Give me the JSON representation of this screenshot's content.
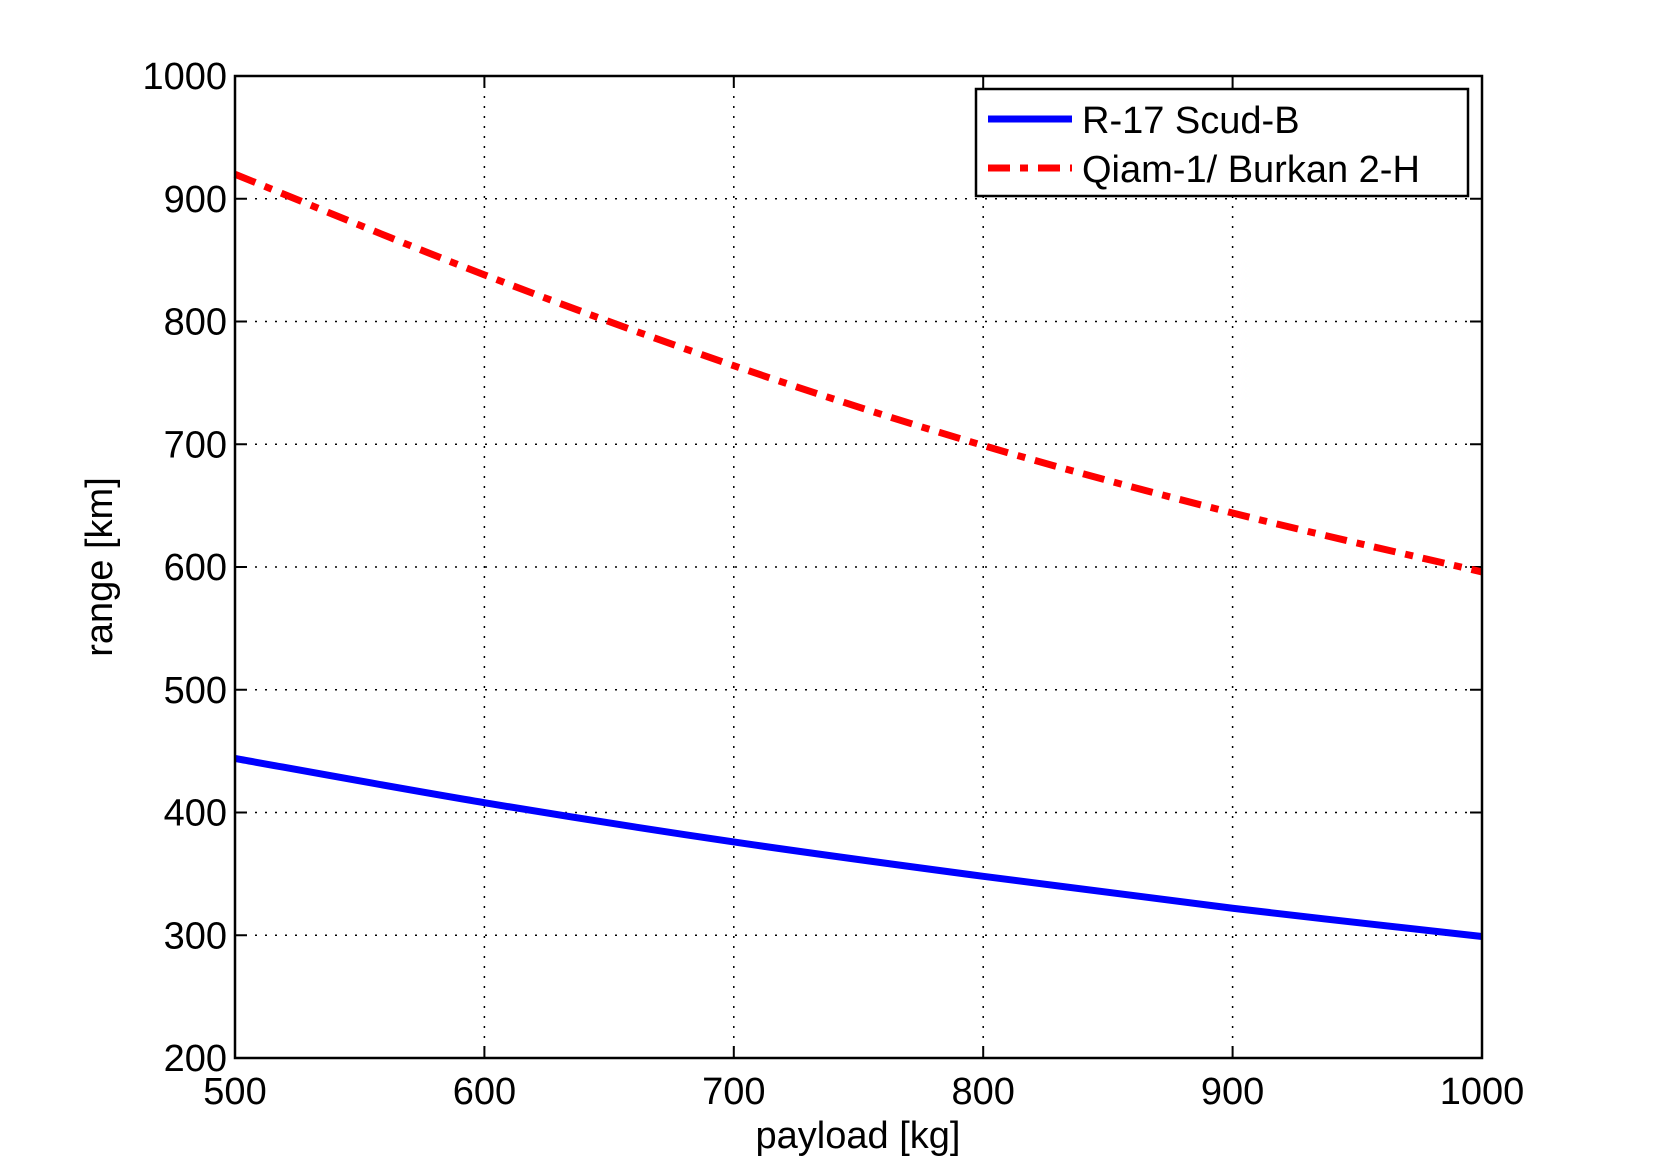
{
  "chart_data": {
    "type": "line",
    "title": "",
    "xlabel": "payload [kg]",
    "ylabel": "range [km]",
    "xlim": [
      500,
      1000
    ],
    "ylim": [
      200,
      1000
    ],
    "xticks": [
      500,
      600,
      700,
      800,
      900,
      1000
    ],
    "yticks": [
      200,
      300,
      400,
      500,
      600,
      700,
      800,
      900,
      1000
    ],
    "grid": true,
    "legend_position": "top-right",
    "x": [
      500,
      600,
      700,
      800,
      900,
      1000
    ],
    "series": [
      {
        "name": "R-17 Scud-B",
        "color": "#0000ff",
        "style": "solid",
        "values": [
          444,
          408,
          376,
          348,
          322,
          299
        ]
      },
      {
        "name": "Qiam-1/ Burkan 2-H",
        "color": "#ff0000",
        "style": "dash-dot",
        "values": [
          920,
          838,
          764,
          699,
          644,
          596
        ]
      }
    ]
  }
}
